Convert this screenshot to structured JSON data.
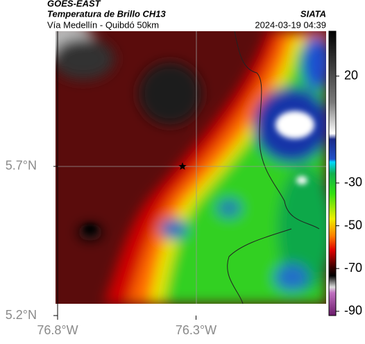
{
  "header": {
    "source": "GOES-EAST",
    "title": "Temperatura de Brillo CH13",
    "brand": "SIATA",
    "subtitle": "Vía Medellín - Quibdó 50km",
    "datetime": "2024-03-19 04:39"
  },
  "map": {
    "lonlim": [
      -76.8,
      -75.83
    ],
    "latlim": [
      5.2,
      6.153
    ],
    "lonticks": [
      {
        "value": -76.8,
        "label": "76.8°W"
      },
      {
        "value": -76.3,
        "label": "76.3°W"
      }
    ],
    "latticks": [
      {
        "value": 5.7,
        "label": "5.7°N"
      },
      {
        "value": 5.2,
        "label": "5.2°N"
      }
    ],
    "colorbar": {
      "lim": [
        -92,
        41
      ],
      "ticks": [
        20,
        -30,
        -50,
        -70,
        -90
      ]
    }
  }
}
